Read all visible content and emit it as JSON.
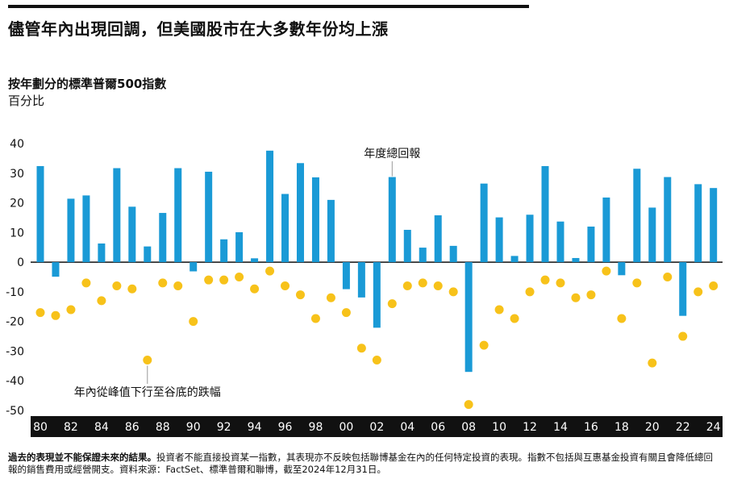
{
  "header": {
    "title": "儘管年內出現回調，但美國股市在大多數年份均上漲",
    "subtitle": "按年劃分的標準普爾500指數",
    "unit": "百分比"
  },
  "footnote": {
    "bold": "過去的表現並不能保證未來的結果。",
    "text": "投資者不能直接投資某一指數，其表現亦不反映包括聯博基金在內的任何特定投資的表現。指數不包括與互惠基金投資有關且會降低總回報的銷售費用或經營開支。資料來源：FactSet、標準普爾和聯博，截至2024年12月31日。"
  },
  "chart_data": {
    "type": "bar",
    "annotations": {
      "annual": "年度總回報",
      "intra": "年內從峰值下行至谷底的跌幅"
    },
    "years": [
      1980,
      1981,
      1982,
      1983,
      1984,
      1985,
      1986,
      1987,
      1988,
      1989,
      1990,
      1991,
      1992,
      1993,
      1994,
      1995,
      1996,
      1997,
      1998,
      1999,
      2000,
      2001,
      2002,
      2003,
      2004,
      2005,
      2006,
      2007,
      2008,
      2009,
      2010,
      2011,
      2012,
      2013,
      2014,
      2015,
      2016,
      2017,
      2018,
      2019,
      2020,
      2021,
      2022,
      2023,
      2024
    ],
    "x_tick_labels": [
      "80",
      "82",
      "84",
      "86",
      "88",
      "90",
      "92",
      "94",
      "96",
      "98",
      "00",
      "02",
      "04",
      "06",
      "08",
      "10",
      "12",
      "14",
      "16",
      "18",
      "20",
      "22",
      "24"
    ],
    "series": [
      {
        "name": "年度總回報",
        "kind": "bar",
        "color": "#1a9ad6",
        "values": [
          32.4,
          -4.9,
          21.4,
          22.5,
          6.3,
          31.7,
          18.7,
          5.3,
          16.6,
          31.7,
          -3.1,
          30.5,
          7.7,
          10.1,
          1.3,
          37.6,
          23.0,
          33.4,
          28.6,
          21.0,
          -9.1,
          -11.9,
          -22.1,
          28.7,
          10.9,
          4.9,
          15.8,
          5.5,
          -37.0,
          26.5,
          15.1,
          2.1,
          16.0,
          32.4,
          13.7,
          1.4,
          12.0,
          21.8,
          -4.4,
          31.5,
          18.4,
          28.7,
          -18.1,
          26.3,
          25.0
        ]
      },
      {
        "name": "年內從峰值下行至谷底的跌幅",
        "kind": "dot",
        "color": "#f7c21a",
        "values": [
          -17,
          -18,
          -16,
          -7,
          -13,
          -8,
          -9,
          -33,
          -7,
          -8,
          -20,
          -6,
          -6,
          -5,
          -9,
          -3,
          -8,
          -11,
          -19,
          -12,
          -17,
          -29,
          -33,
          -14,
          -8,
          -7,
          -8,
          -10,
          -48,
          -28,
          -16,
          -19,
          -10,
          -6,
          -7,
          -12,
          -11,
          -3,
          -19,
          -7,
          -34,
          -5,
          -25,
          -10,
          -8
        ]
      }
    ],
    "yticks": [
      40,
      30,
      20,
      10,
      0,
      -10,
      -20,
      -30,
      -40,
      -50
    ],
    "ylim": [
      -50,
      40
    ]
  }
}
